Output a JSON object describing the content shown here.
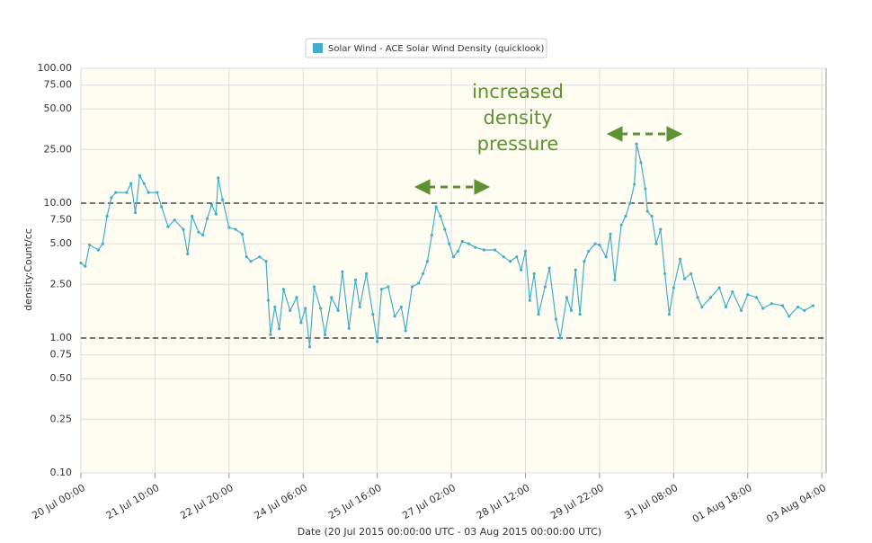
{
  "chart_data": {
    "type": "line",
    "legend": "top",
    "series": [
      {
        "name": "Solar Wind - ACE Solar Wind Density (quicklook)",
        "color": "#45aec4",
        "values": [
          3.6,
          3.4,
          4.9,
          4.5,
          5,
          8,
          11,
          12,
          12,
          14,
          8.5,
          16,
          14,
          12,
          12,
          9.4,
          6.7,
          7.5,
          6.4,
          4.2,
          8,
          6.1,
          5.8,
          7.7,
          9.7,
          8.3,
          15.4,
          10.6,
          6.6,
          6.4,
          5.9,
          4,
          3.7,
          4,
          3.7,
          1.9,
          1.06,
          1.7,
          1.17,
          2.3,
          1.6,
          2,
          1.3,
          1.66,
          0.86,
          2.4,
          1.66,
          1.06,
          2,
          1.6,
          3.1,
          1.18,
          2.7,
          1.7,
          3,
          1.5,
          0.94,
          2.3,
          2.4,
          1.45,
          1.7,
          1.13,
          2.4,
          2.55,
          3,
          3.7,
          5.8,
          9.4,
          8,
          6.4,
          5,
          4,
          4.4,
          5.2,
          5,
          4.7,
          4.5,
          4.5,
          4,
          3.7,
          4,
          3.2,
          4.4,
          1.9,
          3,
          1.5,
          2.4,
          3.3,
          1.38,
          1,
          2,
          1.6,
          3.2,
          1.5,
          3.7,
          4.4,
          5,
          4.9,
          4,
          5.9,
          2.7,
          6.9,
          8,
          10,
          13.8,
          27.5,
          20,
          12.8,
          8.7,
          8,
          5,
          6.4,
          3,
          1.5,
          2.36,
          3.85,
          2.75,
          3,
          2,
          1.7,
          2,
          2.36,
          1.7,
          2.2,
          1.6,
          2.1,
          2,
          1.66,
          1.8,
          1.74,
          1.45,
          1.7,
          1.6,
          1.74
        ]
      }
    ],
    "x": [
      "2015-07-20T00:00",
      "2015-07-20T02:00",
      "2015-07-20T04:00",
      "2015-07-20T08:00",
      "2015-07-20T10:00",
      "2015-07-20T12:00",
      "2015-07-20T14:00",
      "2015-07-20T16:00",
      "2015-07-20T21:00",
      "2015-07-20T23:00",
      "2015-07-21T01:00",
      "2015-07-21T03:00",
      "2015-07-21T05:00",
      "2015-07-21T07:00",
      "2015-07-21T11:00",
      "2015-07-21T13:00",
      "2015-07-21T16:00",
      "2015-07-21T19:00",
      "2015-07-21T23:00",
      "2015-07-22T01:00",
      "2015-07-22T03:00",
      "2015-07-22T06:00",
      "2015-07-22T08:00",
      "2015-07-22T10:00",
      "2015-07-22T12:00",
      "2015-07-22T14:00",
      "2015-07-22T15:00",
      "2015-07-22T17:00",
      "2015-07-22T20:00",
      "2015-07-22T23:00",
      "2015-07-23T02:00",
      "2015-07-23T04:00",
      "2015-07-23T06:00",
      "2015-07-23T10:00",
      "2015-07-23T13:00",
      "2015-07-23T14:00",
      "2015-07-23T15:00",
      "2015-07-23T17:00",
      "2015-07-23T19:00",
      "2015-07-23T21:00",
      "2015-07-24T00:00",
      "2015-07-24T03:00",
      "2015-07-24T05:00",
      "2015-07-24T07:00",
      "2015-07-24T09:00",
      "2015-07-24T11:00",
      "2015-07-24T14:00",
      "2015-07-24T16:00",
      "2015-07-24T19:00",
      "2015-07-24T22:00",
      "2015-07-25T00:00",
      "2015-07-25T03:00",
      "2015-07-25T06:00",
      "2015-07-25T08:00",
      "2015-07-25T11:00",
      "2015-07-25T14:00",
      "2015-07-25T16:00",
      "2015-07-25T18:00",
      "2015-07-25T21:00",
      "2015-07-26T00:00",
      "2015-07-26T03:00",
      "2015-07-26T05:00",
      "2015-07-26T08:00",
      "2015-07-26T11:00",
      "2015-07-26T13:00",
      "2015-07-26T15:00",
      "2015-07-26T17:00",
      "2015-07-26T19:00",
      "2015-07-26T21:00",
      "2015-07-26T23:00",
      "2015-07-27T01:00",
      "2015-07-27T03:00",
      "2015-07-27T05:00",
      "2015-07-27T07:00",
      "2015-07-27T10:00",
      "2015-07-27T13:00",
      "2015-07-27T17:00",
      "2015-07-27T22:00",
      "2015-07-28T02:00",
      "2015-07-28T05:00",
      "2015-07-28T08:00",
      "2015-07-28T10:00",
      "2015-07-28T12:00",
      "2015-07-28T14:00",
      "2015-07-28T16:00",
      "2015-07-28T18:00",
      "2015-07-28T21:00",
      "2015-07-28T23:00",
      "2015-07-29T02:00",
      "2015-07-29T04:00",
      "2015-07-29T07:00",
      "2015-07-29T09:00",
      "2015-07-29T11:00",
      "2015-07-29T13:00",
      "2015-07-29T15:00",
      "2015-07-29T17:00",
      "2015-07-29T20:00",
      "2015-07-29T22:00",
      "2015-07-30T01:00",
      "2015-07-30T03:00",
      "2015-07-30T05:00",
      "2015-07-30T08:00",
      "2015-07-30T10:00",
      "2015-07-30T12:00",
      "2015-07-30T14:00",
      "2015-07-30T15:00",
      "2015-07-30T17:00",
      "2015-07-30T19:00",
      "2015-07-30T20:00",
      "2015-07-30T22:00",
      "2015-07-31T00:00",
      "2015-07-31T02:00",
      "2015-07-31T04:00",
      "2015-07-31T06:00",
      "2015-07-31T08:00",
      "2015-07-31T11:00",
      "2015-07-31T13:00",
      "2015-07-31T16:00",
      "2015-07-31T19:00",
      "2015-07-31T21:00",
      "2015-08-01T01:00",
      "2015-08-01T05:00",
      "2015-08-01T08:00",
      "2015-08-01T11:00",
      "2015-08-01T15:00",
      "2015-08-01T18:00",
      "2015-08-01T22:00",
      "2015-08-02T01:00",
      "2015-08-02T05:00",
      "2015-08-02T10:00",
      "2015-08-02T13:00",
      "2015-08-02T17:00",
      "2015-08-02T20:00",
      "2015-08-03T00:00"
    ],
    "xlim": [
      "2015-07-20T00:00",
      "2015-08-03T06:00"
    ],
    "xticks": [
      {
        "value": "2015-07-20T00:00",
        "label": "20 Jul 00:00"
      },
      {
        "value": "2015-07-21T10:00",
        "label": "21 Jul 10:00"
      },
      {
        "value": "2015-07-22T20:00",
        "label": "22 Jul 20:00"
      },
      {
        "value": "2015-07-24T06:00",
        "label": "24 Jul 06:00"
      },
      {
        "value": "2015-07-25T16:00",
        "label": "25 Jul 16:00"
      },
      {
        "value": "2015-07-27T02:00",
        "label": "27 Jul 02:00"
      },
      {
        "value": "2015-07-28T12:00",
        "label": "28 Jul 12:00"
      },
      {
        "value": "2015-07-29T22:00",
        "label": "29 Jul 22:00"
      },
      {
        "value": "2015-07-31T08:00",
        "label": "31 Jul 08:00"
      },
      {
        "value": "2015-08-01T18:00",
        "label": "01 Aug 18:00"
      },
      {
        "value": "2015-08-03T04:00",
        "label": "03 Aug 04:00"
      }
    ],
    "ylim": [
      0.1,
      100
    ],
    "ylog": true,
    "yticks": [
      {
        "value": 0.1,
        "label": "0.10"
      },
      {
        "value": 0.25,
        "label": "0.25"
      },
      {
        "value": 0.5,
        "label": "0.50"
      },
      {
        "value": 0.75,
        "label": "0.75"
      },
      {
        "value": 1,
        "label": "1.00"
      },
      {
        "value": 2.5,
        "label": "2.50"
      },
      {
        "value": 5,
        "label": "5.00"
      },
      {
        "value": 7.5,
        "label": "7.50"
      },
      {
        "value": 10,
        "label": "10.00"
      },
      {
        "value": 25,
        "label": "25.00"
      },
      {
        "value": 50,
        "label": "50.00"
      },
      {
        "value": 75,
        "label": "75.00"
      },
      {
        "value": 100,
        "label": "100.00"
      }
    ],
    "grid": true,
    "hlines": [
      10,
      1
    ],
    "ylabel": "density:Count/cc",
    "xlabel": "Date (20 Jul 2015 00:00:00 UTC - 03 Aug 2015 00:00:00 UTC)",
    "annotation": [
      "increased",
      "density",
      "pressure"
    ]
  }
}
